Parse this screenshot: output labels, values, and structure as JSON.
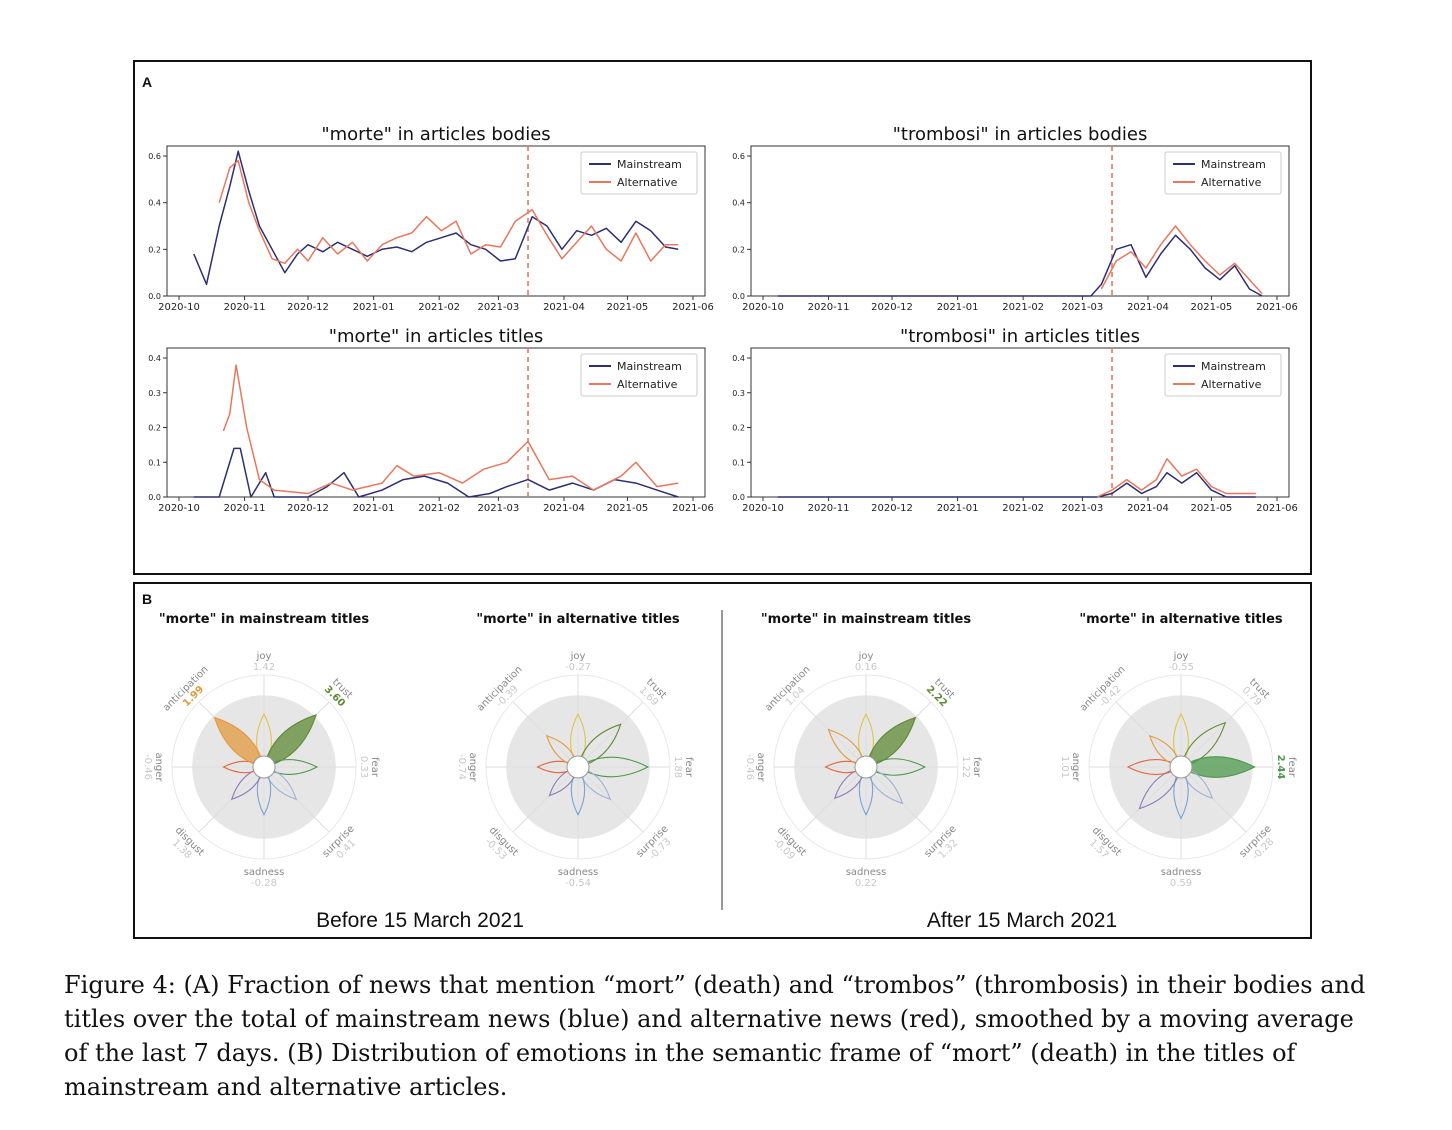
{
  "panels": {
    "a_label": "A",
    "b_label": "B",
    "before_label": "Before 15 March 2021",
    "after_label": "After 15 March 2021"
  },
  "colors": {
    "mainstream": "#2c2f72",
    "alternative": "#e8775e",
    "vline": "#e8775e",
    "joy": "#e0c34a",
    "trust": "#5f8a35",
    "fear": "#4e9a4e",
    "surprise": "#9db1d8",
    "sadness": "#7aa3d9",
    "disgust": "#8a7ab8",
    "anger": "#e2673f",
    "anticipation": "#e39a3c",
    "ring": "#e6e6e6"
  },
  "chart_data": [
    {
      "type": "line",
      "title": "\"morte\" in articles bodies",
      "x_ticks": [
        "2020-10",
        "2020-11",
        "2020-12",
        "2021-01",
        "2021-02",
        "2021-03",
        "2021-04",
        "2021-05",
        "2021-06"
      ],
      "ylim": [
        0,
        0.6
      ],
      "y_ticks": [
        "0.0",
        "0.2",
        "0.4",
        "0.6"
      ],
      "vline": "2021-03-15",
      "legend": [
        "Mainstream",
        "Alternative"
      ],
      "legend_position": "top-right",
      "series": [
        {
          "name": "Mainstream",
          "x": [
            "2020-10-08",
            "2020-10-14",
            "2020-10-20",
            "2020-10-25",
            "2020-10-29",
            "2020-11-03",
            "2020-11-08",
            "2020-11-14",
            "2020-11-20",
            "2020-11-26",
            "2020-12-01",
            "2020-12-08",
            "2020-12-15",
            "2020-12-22",
            "2020-12-29",
            "2021-01-05",
            "2021-01-12",
            "2021-01-19",
            "2021-01-26",
            "2021-02-02",
            "2021-02-09",
            "2021-02-16",
            "2021-02-23",
            "2021-03-02",
            "2021-03-09",
            "2021-03-17",
            "2021-03-24",
            "2021-03-31",
            "2021-04-07",
            "2021-04-14",
            "2021-04-21",
            "2021-04-28",
            "2021-05-05",
            "2021-05-12",
            "2021-05-19",
            "2021-05-25"
          ],
          "y": [
            0.18,
            0.05,
            0.3,
            0.47,
            0.62,
            0.45,
            0.3,
            0.2,
            0.1,
            0.18,
            0.22,
            0.19,
            0.23,
            0.2,
            0.17,
            0.2,
            0.21,
            0.19,
            0.23,
            0.25,
            0.27,
            0.22,
            0.2,
            0.15,
            0.16,
            0.34,
            0.3,
            0.2,
            0.28,
            0.26,
            0.29,
            0.23,
            0.32,
            0.28,
            0.21,
            0.2
          ]
        },
        {
          "name": "Alternative",
          "x": [
            "2020-10-20",
            "2020-10-25",
            "2020-10-29",
            "2020-11-03",
            "2020-11-08",
            "2020-11-14",
            "2020-11-20",
            "2020-11-26",
            "2020-12-01",
            "2020-12-08",
            "2020-12-15",
            "2020-12-22",
            "2020-12-29",
            "2021-01-05",
            "2021-01-12",
            "2021-01-19",
            "2021-01-26",
            "2021-02-02",
            "2021-02-09",
            "2021-02-16",
            "2021-02-23",
            "2021-03-02",
            "2021-03-09",
            "2021-03-17",
            "2021-03-24",
            "2021-03-31",
            "2021-04-07",
            "2021-04-14",
            "2021-04-21",
            "2021-04-28",
            "2021-05-05",
            "2021-05-12",
            "2021-05-19",
            "2021-05-25"
          ],
          "y": [
            0.4,
            0.55,
            0.58,
            0.4,
            0.28,
            0.16,
            0.14,
            0.2,
            0.15,
            0.25,
            0.18,
            0.23,
            0.15,
            0.22,
            0.25,
            0.27,
            0.34,
            0.28,
            0.32,
            0.18,
            0.22,
            0.21,
            0.32,
            0.37,
            0.26,
            0.16,
            0.23,
            0.3,
            0.2,
            0.15,
            0.27,
            0.15,
            0.22,
            0.22
          ]
        }
      ]
    },
    {
      "type": "line",
      "title": "\"trombosi\" in articles bodies",
      "x_ticks": [
        "2020-10",
        "2020-11",
        "2020-12",
        "2021-01",
        "2021-02",
        "2021-03",
        "2021-04",
        "2021-05",
        "2021-06"
      ],
      "ylim": [
        0,
        0.6
      ],
      "y_ticks": [
        "0.0",
        "0.2",
        "0.4",
        "0.6"
      ],
      "vline": "2021-03-15",
      "legend": [
        "Mainstream",
        "Alternative"
      ],
      "legend_position": "top-right",
      "series": [
        {
          "name": "Mainstream",
          "x": [
            "2020-10-08",
            "2021-03-05",
            "2021-03-10",
            "2021-03-17",
            "2021-03-24",
            "2021-03-31",
            "2021-04-07",
            "2021-04-14",
            "2021-04-21",
            "2021-04-28",
            "2021-05-05",
            "2021-05-12",
            "2021-05-19",
            "2021-05-25"
          ],
          "y": [
            0.0,
            0.0,
            0.05,
            0.2,
            0.22,
            0.08,
            0.18,
            0.26,
            0.2,
            0.12,
            0.07,
            0.13,
            0.03,
            0.0
          ]
        },
        {
          "name": "Alternative",
          "x": [
            "2021-03-10",
            "2021-03-17",
            "2021-03-24",
            "2021-03-31",
            "2021-04-07",
            "2021-04-14",
            "2021-04-21",
            "2021-04-28",
            "2021-05-05",
            "2021-05-12",
            "2021-05-19",
            "2021-05-25"
          ],
          "y": [
            0.03,
            0.15,
            0.19,
            0.12,
            0.22,
            0.3,
            0.22,
            0.15,
            0.09,
            0.14,
            0.07,
            0.01
          ]
        }
      ]
    },
    {
      "type": "line",
      "title": "\"morte\" in articles titles",
      "x_ticks": [
        "2020-10",
        "2020-11",
        "2020-12",
        "2021-01",
        "2021-02",
        "2021-03",
        "2021-04",
        "2021-05",
        "2021-06"
      ],
      "ylim": [
        0,
        0.4
      ],
      "y_ticks": [
        "0.0",
        "0.1",
        "0.2",
        "0.3",
        "0.4"
      ],
      "vline": "2021-03-15",
      "legend": [
        "Mainstream",
        "Alternative"
      ],
      "legend_position": "top-right",
      "series": [
        {
          "name": "Mainstream",
          "x": [
            "2020-10-08",
            "2020-10-20",
            "2020-10-27",
            "2020-10-30",
            "2020-11-04",
            "2020-11-11",
            "2020-11-15",
            "2020-12-01",
            "2020-12-10",
            "2020-12-18",
            "2020-12-25",
            "2021-01-05",
            "2021-01-15",
            "2021-01-25",
            "2021-02-05",
            "2021-02-15",
            "2021-02-25",
            "2021-03-05",
            "2021-03-15",
            "2021-03-25",
            "2021-04-05",
            "2021-04-15",
            "2021-04-25",
            "2021-05-05",
            "2021-05-15",
            "2021-05-25"
          ],
          "y": [
            0.0,
            0.0,
            0.14,
            0.14,
            0.0,
            0.07,
            0.0,
            0.0,
            0.03,
            0.07,
            0.0,
            0.02,
            0.05,
            0.06,
            0.04,
            0.0,
            0.01,
            0.03,
            0.05,
            0.02,
            0.04,
            0.02,
            0.05,
            0.04,
            0.02,
            0.0
          ]
        },
        {
          "name": "Alternative",
          "x": [
            "2020-10-22",
            "2020-10-25",
            "2020-10-28",
            "2020-11-02",
            "2020-11-08",
            "2020-11-15",
            "2020-12-01",
            "2020-12-12",
            "2020-12-22",
            "2021-01-05",
            "2021-01-12",
            "2021-01-20",
            "2021-02-01",
            "2021-02-12",
            "2021-02-22",
            "2021-03-05",
            "2021-03-15",
            "2021-03-25",
            "2021-04-05",
            "2021-04-15",
            "2021-04-28",
            "2021-05-05",
            "2021-05-15",
            "2021-05-25"
          ],
          "y": [
            0.19,
            0.24,
            0.38,
            0.2,
            0.05,
            0.02,
            0.01,
            0.04,
            0.02,
            0.04,
            0.09,
            0.06,
            0.07,
            0.04,
            0.08,
            0.1,
            0.16,
            0.05,
            0.06,
            0.02,
            0.06,
            0.1,
            0.03,
            0.04
          ]
        }
      ]
    },
    {
      "type": "line",
      "title": "\"trombosi\" in articles titles",
      "x_ticks": [
        "2020-10",
        "2020-11",
        "2020-12",
        "2021-01",
        "2021-02",
        "2021-03",
        "2021-04",
        "2021-05",
        "2021-06"
      ],
      "ylim": [
        0,
        0.4
      ],
      "y_ticks": [
        "0.0",
        "0.1",
        "0.2",
        "0.3",
        "0.4"
      ],
      "vline": "2021-03-15",
      "legend": [
        "Mainstream",
        "Alternative"
      ],
      "legend_position": "top-right",
      "series": [
        {
          "name": "Mainstream",
          "x": [
            "2020-10-08",
            "2021-03-08",
            "2021-03-15",
            "2021-03-22",
            "2021-03-29",
            "2021-04-05",
            "2021-04-10",
            "2021-04-17",
            "2021-04-24",
            "2021-05-01",
            "2021-05-08",
            "2021-05-15",
            "2021-05-22"
          ],
          "y": [
            0.0,
            0.0,
            0.01,
            0.04,
            0.01,
            0.03,
            0.07,
            0.04,
            0.07,
            0.02,
            0.0,
            0.0,
            0.0
          ]
        },
        {
          "name": "Alternative",
          "x": [
            "2021-03-08",
            "2021-03-15",
            "2021-03-22",
            "2021-03-29",
            "2021-04-05",
            "2021-04-10",
            "2021-04-17",
            "2021-04-24",
            "2021-05-01",
            "2021-05-08",
            "2021-05-15",
            "2021-05-22"
          ],
          "y": [
            0.0,
            0.02,
            0.05,
            0.02,
            0.05,
            0.11,
            0.06,
            0.08,
            0.03,
            0.01,
            0.01,
            0.01
          ]
        }
      ]
    }
  ],
  "radar_axes": [
    "joy",
    "trust",
    "fear",
    "surprise",
    "sadness",
    "disgust",
    "anger",
    "anticipation"
  ],
  "radars": [
    {
      "title": "\"morte\" in mainstream titles",
      "values": {
        "joy": "1.42",
        "trust": "3.60",
        "fear": "0.33",
        "surprise": "0.41",
        "sadness": "-0.28",
        "disgust": "1.38",
        "anger": "-0.46",
        "anticipation": "1.99"
      },
      "lengths": {
        "joy": 0.72,
        "trust": 1.0,
        "fear": 0.72,
        "surprise": 0.62,
        "sadness": 0.65,
        "disgust": 0.62,
        "anger": 0.55,
        "anticipation": 0.95
      },
      "filled": [
        "trust",
        "anticipation"
      ]
    },
    {
      "title": "\"morte\" in alternative titles",
      "values": {
        "joy": "-0.27",
        "trust": "1.69",
        "fear": "1.88",
        "surprise": "-0.73",
        "sadness": "-0.54",
        "disgust": "-0.53",
        "anger": "-0.74",
        "anticipation": "-0.39"
      },
      "lengths": {
        "joy": 0.72,
        "trust": 0.82,
        "fear": 0.95,
        "surprise": 0.62,
        "sadness": 0.65,
        "disgust": 0.55,
        "anger": 0.55,
        "anticipation": 0.6
      },
      "filled": []
    },
    {
      "title": "\"morte\" in mainstream titles",
      "values": {
        "joy": "0.16",
        "trust": "2.22",
        "fear": "1.22",
        "surprise": "1.32",
        "sadness": "0.22",
        "disgust": "-0.09",
        "anger": "-0.46",
        "anticipation": "1.04"
      },
      "lengths": {
        "joy": 0.72,
        "trust": 0.95,
        "fear": 0.8,
        "surprise": 0.7,
        "sadness": 0.65,
        "disgust": 0.6,
        "anger": 0.55,
        "anticipation": 0.72
      },
      "filled": [
        "trust"
      ]
    },
    {
      "title": "\"morte\" in alternative titles",
      "values": {
        "joy": "-0.55",
        "trust": "0.79",
        "fear": "2.44",
        "surprise": "-0.28",
        "sadness": "0.59",
        "disgust": "1.57",
        "anger": "1.01",
        "anticipation": "-0.42"
      },
      "lengths": {
        "joy": 0.72,
        "trust": 0.85,
        "fear": 1.0,
        "surprise": 0.6,
        "sadness": 0.7,
        "disgust": 0.8,
        "anger": 0.72,
        "anticipation": 0.6
      },
      "filled": [
        "fear"
      ]
    }
  ],
  "caption": {
    "line1": "Figure 4: (A) Fraction of news that mention “mort” (death) and “trombos” (thrombosis) in their bodies and",
    "line2": "titles over the total of mainstream news (blue) and alternative news (red), smoothed by a moving average",
    "line3": "of the last 7 days.  (B) Distribution of emotions in the semantic frame of “mort” (death) in the titles of",
    "line4": "mainstream and alternative articles."
  }
}
